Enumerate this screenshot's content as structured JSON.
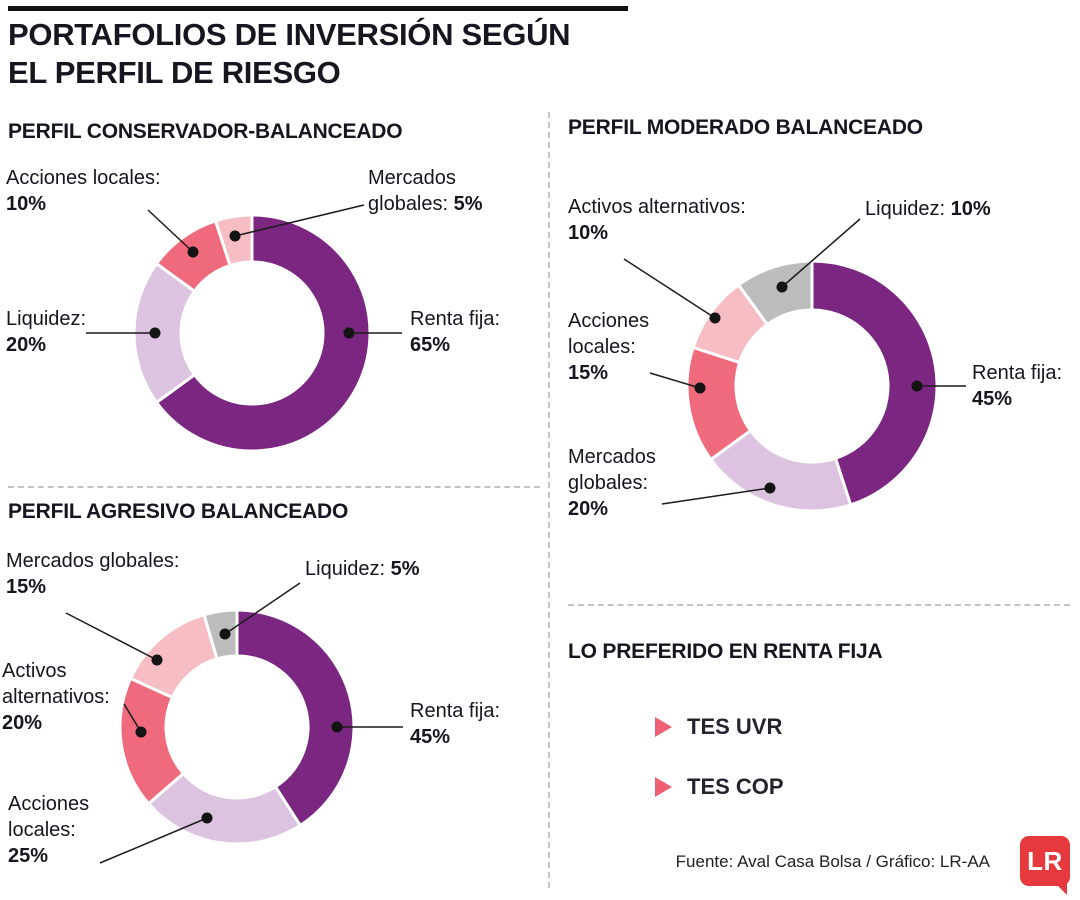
{
  "title": {
    "line1": "PORTAFOLIOS DE INVERSIÓN SEGÚN",
    "line2": "EL PERFIL DE RIESGO"
  },
  "chart_data": [
    {
      "type": "pie",
      "subtype": "donut",
      "title": "PERFIL CONSERVADOR-BALANCEADO",
      "unit": "%",
      "segments": [
        {
          "label": "Renta fija",
          "value": 65,
          "color": "#7b2681",
          "lines": [
            "Renta fija:",
            "65%"
          ]
        },
        {
          "label": "Liquidez",
          "value": 20,
          "color": "#dcc3e0",
          "lines": [
            "Liquidez:",
            "20%"
          ]
        },
        {
          "label": "Acciones locales",
          "value": 10,
          "color": "#ef6a7c",
          "lines": [
            "Acciones locales:",
            "10%"
          ]
        },
        {
          "label": "Mercados globales",
          "value": 5,
          "color": "#f7bdc5",
          "lines": [
            "Mercados",
            "globales: 5%"
          ]
        }
      ]
    },
    {
      "type": "pie",
      "subtype": "donut",
      "title": "PERFIL MODERADO BALANCEADO",
      "unit": "%",
      "segments": [
        {
          "label": "Renta fija",
          "value": 45,
          "color": "#7b2681",
          "lines": [
            "Renta fija:",
            "45%"
          ]
        },
        {
          "label": "Mercados globales",
          "value": 20,
          "color": "#dcc3e0",
          "lines": [
            "Mercados",
            "globales:",
            "20%"
          ]
        },
        {
          "label": "Acciones locales",
          "value": 15,
          "color": "#ef6a7c",
          "lines": [
            "Acciones",
            "locales:",
            "15%"
          ]
        },
        {
          "label": "Activos alternativos",
          "value": 10,
          "color": "#f7bdc5",
          "lines": [
            "Activos alternativos:",
            "10%"
          ]
        },
        {
          "label": "Liquidez",
          "value": 10,
          "color": "#bdbcbd",
          "lines": [
            "Liquidez: 10%"
          ]
        }
      ]
    },
    {
      "type": "pie",
      "subtype": "donut",
      "title": "PERFIL AGRESIVO BALANCEADO",
      "unit": "%",
      "segments": [
        {
          "label": "Renta fija",
          "value": 45,
          "color": "#7b2681",
          "lines": [
            "Renta fija:",
            "45%"
          ]
        },
        {
          "label": "Acciones locales",
          "value": 25,
          "color": "#dcc3e0",
          "lines": [
            "Acciones",
            "locales:",
            "25%"
          ]
        },
        {
          "label": "Activos alternativos",
          "value": 20,
          "color": "#ef6a7c",
          "lines": [
            "Activos",
            "alternativos:",
            "20%"
          ]
        },
        {
          "label": "Mercados globales",
          "value": 15,
          "color": "#f7bdc5",
          "lines": [
            "Mercados globales:",
            "15%"
          ]
        },
        {
          "label": "Liquidez",
          "value": 5,
          "color": "#bdbcbd",
          "lines": [
            "Liquidez: 5%"
          ]
        }
      ]
    }
  ],
  "preferred": {
    "title": "LO PREFERIDO EN RENTA FIJA",
    "items": [
      "TES UVR",
      "TES COP"
    ],
    "bullet_color": "#ef5f72"
  },
  "footer": {
    "source": "Fuente: Aval Casa Bolsa / Gráfico: LR-AA",
    "logo_text": "LR",
    "logo_color": "#e6393d"
  }
}
